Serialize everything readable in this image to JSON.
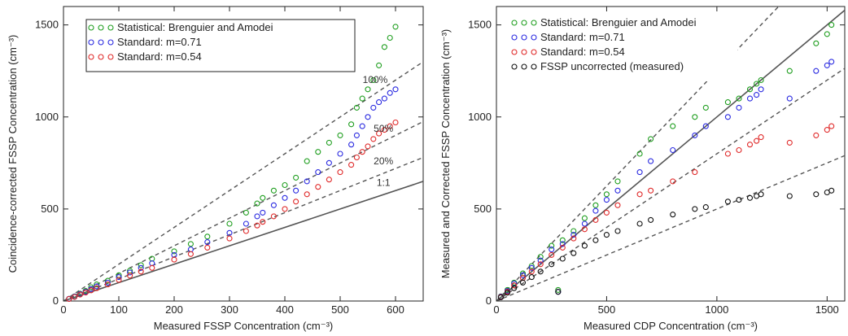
{
  "chart_data": [
    {
      "type": "scatter",
      "xlabel": "Measured FSSP Concentration (cm⁻³)",
      "ylabel": "Coincidence-corrected FSSP Concentration (cm⁻³)",
      "xlim": [
        0,
        650
      ],
      "ylim": [
        0,
        1600
      ],
      "xticks": [
        0,
        100,
        200,
        300,
        400,
        500,
        600
      ],
      "yticks": [
        0,
        500,
        1000,
        1500
      ],
      "grid": false,
      "legend_position": "top-left",
      "legend": [
        "Statistical: Brenguier and Amodei",
        "Standard: m=0.71",
        "Standard: m=0.54"
      ],
      "colors": {
        "green": "#1f9e1f",
        "blue": "#2a2ae0",
        "red": "#e02a2a"
      },
      "reference_lines": [
        {
          "label": "100%",
          "slope": 2.0,
          "style": "dashed",
          "label_x": 575
        },
        {
          "label": "50%",
          "slope": 1.5,
          "style": "dashed",
          "label_x": 590
        },
        {
          "label": "20%",
          "slope": 1.2,
          "style": "dashed",
          "label_x": 590
        },
        {
          "label": "1:1",
          "slope": 1.0,
          "style": "solid",
          "label_x": 590
        }
      ],
      "series": [
        {
          "color": "#1f9e1f",
          "x": [
            10,
            20,
            30,
            40,
            50,
            60,
            80,
            100,
            120,
            140,
            160,
            200,
            230,
            260,
            300,
            330,
            350,
            360,
            380,
            400,
            420,
            440,
            460,
            480,
            500,
            520,
            530,
            540,
            550,
            560,
            570,
            580,
            590,
            600
          ],
          "y": [
            12,
            25,
            40,
            55,
            75,
            90,
            110,
            140,
            165,
            195,
            230,
            270,
            310,
            350,
            420,
            480,
            530,
            560,
            600,
            630,
            670,
            760,
            810,
            860,
            900,
            960,
            1050,
            1100,
            1150,
            1200,
            1280,
            1380,
            1430,
            1490
          ]
        },
        {
          "color": "#2a2ae0",
          "x": [
            10,
            20,
            30,
            40,
            50,
            60,
            80,
            100,
            120,
            140,
            160,
            200,
            230,
            260,
            300,
            330,
            350,
            360,
            380,
            400,
            420,
            440,
            460,
            480,
            500,
            520,
            530,
            540,
            550,
            560,
            570,
            580,
            590,
            600
          ],
          "y": [
            12,
            24,
            38,
            50,
            65,
            80,
            100,
            130,
            155,
            180,
            205,
            250,
            280,
            320,
            370,
            420,
            460,
            480,
            520,
            560,
            600,
            650,
            700,
            750,
            800,
            850,
            900,
            950,
            1000,
            1050,
            1080,
            1100,
            1130,
            1150
          ]
        },
        {
          "color": "#e02a2a",
          "x": [
            10,
            20,
            30,
            40,
            50,
            60,
            80,
            100,
            120,
            140,
            160,
            200,
            230,
            260,
            300,
            330,
            350,
            360,
            380,
            400,
            420,
            440,
            460,
            480,
            500,
            520,
            530,
            540,
            550,
            560,
            570,
            580,
            590,
            600
          ],
          "y": [
            11,
            22,
            35,
            46,
            58,
            70,
            90,
            115,
            138,
            160,
            180,
            225,
            255,
            290,
            340,
            380,
            410,
            430,
            460,
            500,
            540,
            580,
            620,
            660,
            700,
            740,
            780,
            810,
            840,
            880,
            910,
            930,
            950,
            970
          ]
        }
      ]
    },
    {
      "type": "scatter",
      "xlabel": "Measured CDP Concentration (cm⁻³)",
      "ylabel": "Measured and Corrected FSSP Concentration (cm⁻³)",
      "xlim": [
        0,
        1580
      ],
      "ylim": [
        0,
        1600
      ],
      "xticks": [
        0,
        500,
        1000,
        1500
      ],
      "yticks": [
        0,
        500,
        1000,
        1500
      ],
      "grid": false,
      "legend_position": "top-left",
      "legend": [
        "Statistical: Brenguier and Amodei",
        "Standard: m=0.71",
        "Standard: m=0.54",
        "FSSP uncorrected (measured)"
      ],
      "colors": {
        "green": "#1f9e1f",
        "blue": "#2a2ae0",
        "red": "#e02a2a",
        "black": "#111111"
      },
      "reference_lines": [
        {
          "slope": 1.0,
          "style": "solid"
        },
        {
          "slope": 1.25,
          "style": "dashed"
        },
        {
          "slope": 0.8,
          "style": "dashed"
        },
        {
          "slope": 0.5,
          "style": "dashed"
        }
      ],
      "series": [
        {
          "color": "#1f9e1f",
          "x": [
            20,
            50,
            80,
            120,
            160,
            200,
            250,
            280,
            300,
            350,
            400,
            450,
            500,
            550,
            650,
            700,
            800,
            900,
            950,
            1050,
            1100,
            1150,
            1180,
            1200,
            1330,
            1450,
            1500,
            1520
          ],
          "y": [
            25,
            60,
            100,
            150,
            190,
            240,
            300,
            60,
            330,
            380,
            450,
            520,
            580,
            650,
            800,
            880,
            950,
            1000,
            1050,
            1080,
            1100,
            1150,
            1180,
            1200,
            1250,
            1400,
            1450,
            1500
          ]
        },
        {
          "color": "#2a2ae0",
          "x": [
            20,
            50,
            80,
            120,
            160,
            200,
            250,
            280,
            300,
            350,
            400,
            450,
            500,
            550,
            650,
            700,
            800,
            900,
            950,
            1050,
            1100,
            1150,
            1180,
            1200,
            1330,
            1450,
            1500,
            1520
          ],
          "y": [
            24,
            55,
            95,
            140,
            180,
            220,
            280,
            50,
            310,
            360,
            420,
            490,
            550,
            600,
            700,
            760,
            820,
            900,
            950,
            1000,
            1050,
            1100,
            1120,
            1150,
            1100,
            1250,
            1280,
            1300
          ]
        },
        {
          "color": "#e02a2a",
          "x": [
            20,
            50,
            80,
            120,
            160,
            200,
            250,
            300,
            350,
            400,
            450,
            500,
            550,
            650,
            700,
            800,
            900,
            1050,
            1100,
            1150,
            1180,
            1200,
            1330,
            1450,
            1500,
            1520
          ],
          "y": [
            22,
            50,
            85,
            125,
            160,
            200,
            250,
            290,
            340,
            390,
            440,
            480,
            520,
            580,
            600,
            650,
            700,
            800,
            820,
            850,
            870,
            890,
            860,
            900,
            930,
            950
          ]
        },
        {
          "color": "#111111",
          "x": [
            20,
            50,
            80,
            120,
            160,
            200,
            250,
            280,
            300,
            350,
            400,
            450,
            500,
            550,
            650,
            700,
            800,
            900,
            950,
            1050,
            1100,
            1150,
            1180,
            1200,
            1330,
            1450,
            1500,
            1520
          ],
          "y": [
            20,
            45,
            70,
            100,
            130,
            160,
            200,
            50,
            230,
            260,
            300,
            330,
            360,
            380,
            420,
            440,
            470,
            500,
            510,
            540,
            550,
            560,
            570,
            580,
            570,
            580,
            590,
            600
          ]
        }
      ]
    }
  ]
}
